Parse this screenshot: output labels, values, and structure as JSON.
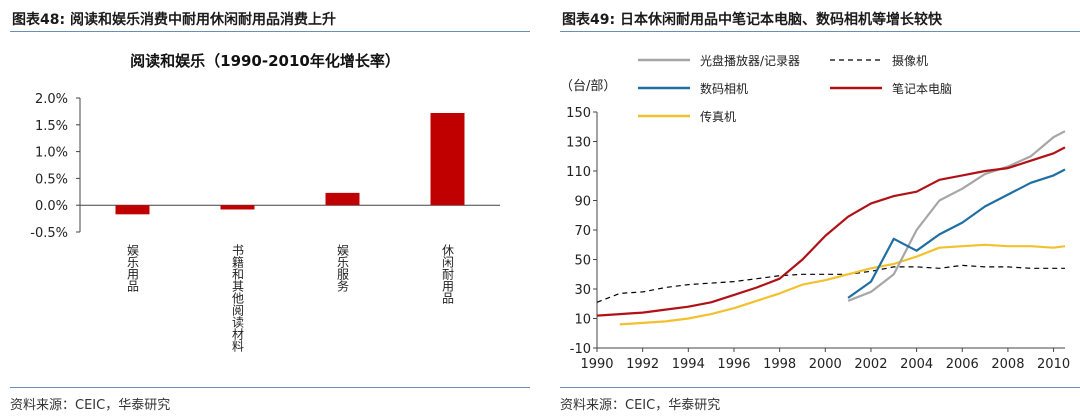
{
  "left": {
    "figure_title": "图表48:  阅读和娱乐消费中耐用休闲耐用品消费上升",
    "source": "资料来源：CEIC，华泰研究"
  },
  "right": {
    "figure_title": "图表49:  日本休闲耐用品中笔记本电脑、数码相机等增长较快",
    "source": "资料来源：CEIC，华泰研究",
    "unit": "（台/部）"
  },
  "colors": {
    "bar": "#c00000",
    "optical": "#a6a6a6",
    "camcorder": "#000000",
    "digital_camera": "#1f6fa3",
    "laptop": "#b01116",
    "fax": "#f2c12e",
    "rule": "#6a8fb3"
  },
  "chart_data": [
    {
      "type": "bar",
      "title": "阅读和娱乐（1990-2010年化增长率）",
      "categories": [
        "娱乐用品",
        "书籍和其他阅读材料",
        "娱乐服务",
        "休闲耐用品"
      ],
      "values": [
        -0.17,
        -0.08,
        0.23,
        1.72
      ],
      "ylim": [
        -0.5,
        2.0
      ],
      "yticks": [
        -0.5,
        0.0,
        0.5,
        1.0,
        1.5,
        2.0
      ],
      "ytick_labels": [
        "-0.5%",
        "0.0%",
        "0.5%",
        "1.0%",
        "1.5%",
        "2.0%"
      ],
      "xlabel": "",
      "ylabel": ""
    },
    {
      "type": "line",
      "title": "",
      "ylabel": "（台/部）",
      "xlim": [
        1990,
        2010.5
      ],
      "ylim": [
        -10,
        150
      ],
      "xticks": [
        1990,
        1992,
        1994,
        1996,
        1998,
        2000,
        2002,
        2004,
        2006,
        2008,
        2010
      ],
      "yticks": [
        -10,
        10,
        30,
        50,
        70,
        90,
        110,
        130,
        150
      ],
      "series": [
        {
          "name": "光盘播放器/记录器",
          "key": "optical",
          "dash": false,
          "x": [
            2001,
            2002,
            2003,
            2004,
            2005,
            2006,
            2007,
            2008,
            2009,
            2010,
            2010.5
          ],
          "y": [
            22,
            28,
            40,
            70,
            90,
            98,
            108,
            113,
            120,
            133,
            137
          ]
        },
        {
          "name": "摄像机",
          "key": "camcorder",
          "dash": true,
          "x": [
            1990,
            1991,
            1992,
            1993,
            1994,
            1995,
            1996,
            1997,
            1998,
            1999,
            2000,
            2001,
            2002,
            2003,
            2004,
            2005,
            2006,
            2007,
            2008,
            2009,
            2010,
            2010.5
          ],
          "y": [
            21,
            27,
            28,
            31,
            33,
            34,
            35,
            37,
            39,
            40,
            40,
            40,
            42,
            45,
            45,
            44,
            46,
            45,
            45,
            44,
            44,
            44
          ]
        },
        {
          "name": "数码相机",
          "key": "digital_camera",
          "dash": false,
          "x": [
            2001,
            2002,
            2003,
            2003.5,
            2004,
            2005,
            2006,
            2007,
            2008,
            2009,
            2010,
            2010.5
          ],
          "y": [
            24,
            35,
            64,
            60,
            56,
            67,
            75,
            86,
            94,
            102,
            107,
            111
          ]
        },
        {
          "name": "笔记本电脑",
          "key": "laptop",
          "dash": false,
          "x": [
            1990,
            1991,
            1992,
            1993,
            1994,
            1995,
            1996,
            1997,
            1998,
            1999,
            2000,
            2001,
            2002,
            2003,
            2004,
            2005,
            2006,
            2007,
            2008,
            2009,
            2010,
            2010.5
          ],
          "y": [
            12,
            13,
            14,
            16,
            18,
            21,
            26,
            31,
            37,
            50,
            66,
            79,
            88,
            93,
            96,
            104,
            107,
            110,
            112,
            117,
            122,
            126
          ]
        },
        {
          "name": "传真机",
          "key": "fax",
          "dash": false,
          "x": [
            1991,
            1992,
            1993,
            1994,
            1995,
            1996,
            1997,
            1998,
            1999,
            2000,
            2001,
            2002,
            2003,
            2004,
            2005,
            2006,
            2007,
            2008,
            2009,
            2010,
            2010.5
          ],
          "y": [
            6,
            7,
            8,
            10,
            13,
            17,
            22,
            27,
            33,
            36,
            40,
            44,
            47,
            52,
            58,
            59,
            60,
            59,
            59,
            58,
            59
          ]
        }
      ]
    }
  ]
}
